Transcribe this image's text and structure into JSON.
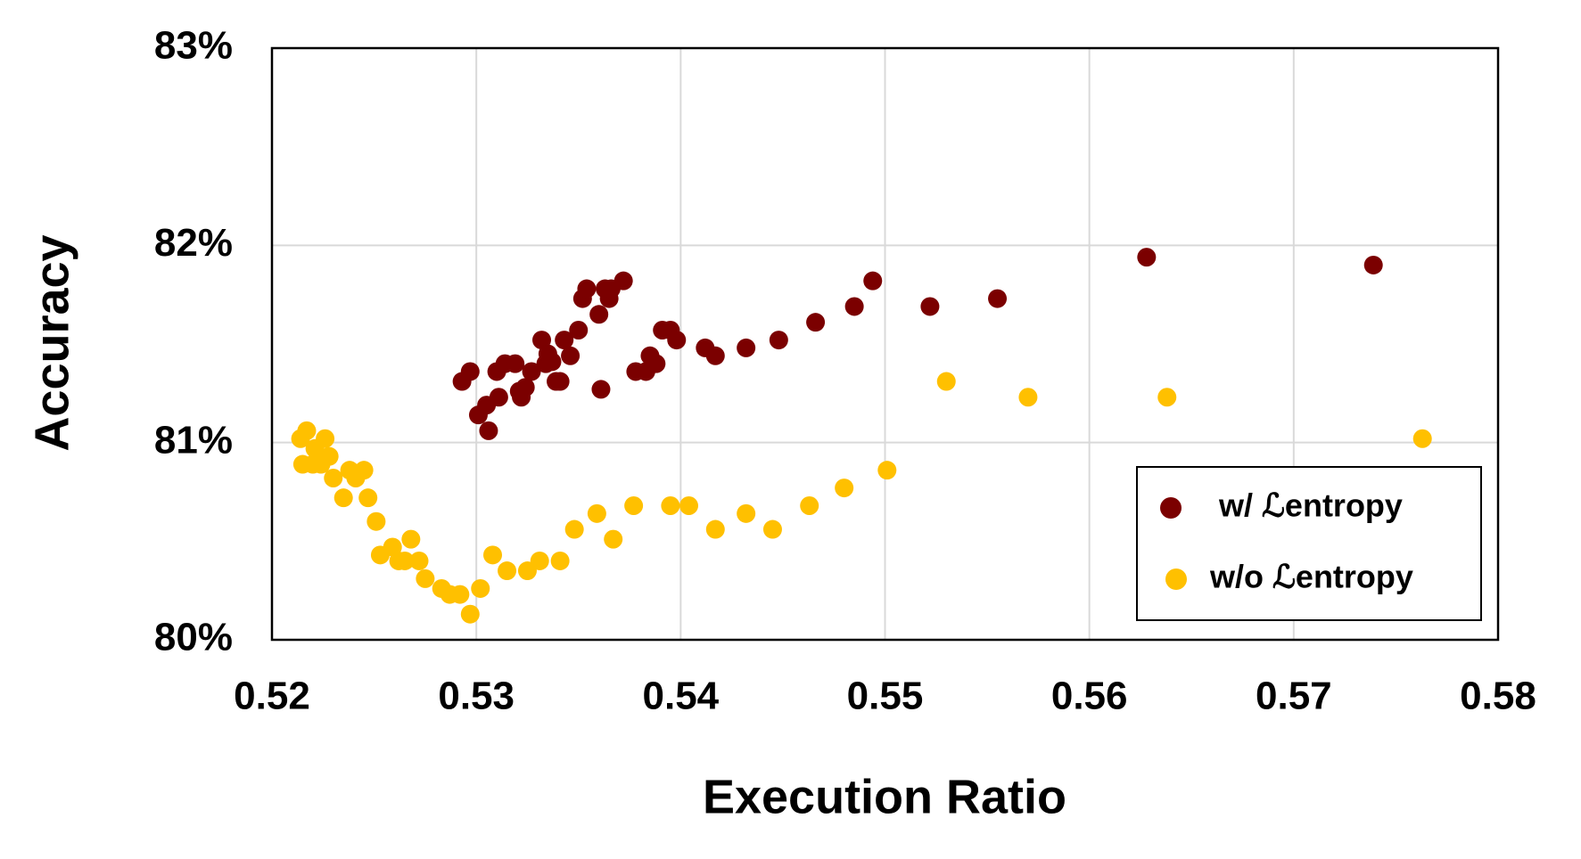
{
  "chart_data": {
    "type": "scatter",
    "x_label": "Execution Ratio",
    "y_label": "Accuracy",
    "xlim": [
      0.52,
      0.58
    ],
    "xticks": [
      0.52,
      0.53,
      0.54,
      0.55,
      0.56,
      0.57,
      0.58
    ],
    "ylim": [
      80,
      83
    ],
    "yticks": [
      {
        "value": 80,
        "label": "80%"
      },
      {
        "value": 81,
        "label": "81%"
      },
      {
        "value": 82,
        "label": "82%"
      },
      {
        "value": 83,
        "label": "83%"
      }
    ],
    "grid": true,
    "legend": "lower right",
    "series": [
      {
        "name": "w/ ℒentropy",
        "color": "#7b0000",
        "x": [
          0.5293,
          0.5297,
          0.5301,
          0.5305,
          0.5306,
          0.531,
          0.5311,
          0.5314,
          0.5319,
          0.5321,
          0.5322,
          0.5324,
          0.5327,
          0.5332,
          0.5334,
          0.5335,
          0.5337,
          0.5339,
          0.5341,
          0.5343,
          0.5346,
          0.535,
          0.5352,
          0.5354,
          0.536,
          0.5361,
          0.5363,
          0.5365,
          0.5366,
          0.5372,
          0.5378,
          0.5383,
          0.5385,
          0.5388,
          0.5391,
          0.5395,
          0.5398,
          0.5412,
          0.5417,
          0.5432,
          0.5448,
          0.5466,
          0.5485,
          0.5494,
          0.5522,
          0.5555,
          0.5628,
          0.5739
        ],
        "values": [
          81.31,
          81.36,
          81.14,
          81.19,
          81.06,
          81.36,
          81.23,
          81.4,
          81.4,
          81.26,
          81.23,
          81.28,
          81.36,
          81.52,
          81.4,
          81.45,
          81.41,
          81.31,
          81.31,
          81.52,
          81.44,
          81.57,
          81.73,
          81.78,
          81.65,
          81.27,
          81.78,
          81.73,
          81.78,
          81.82,
          81.36,
          81.36,
          81.44,
          81.4,
          81.57,
          81.57,
          81.52,
          81.48,
          81.44,
          81.48,
          81.52,
          81.61,
          81.69,
          81.82,
          81.69,
          81.73,
          81.94,
          81.9
        ]
      },
      {
        "name": "w/o ℒentropy",
        "color": "#ffc000",
        "x": [
          0.5214,
          0.5217,
          0.5215,
          0.522,
          0.5221,
          0.5224,
          0.5226,
          0.5228,
          0.523,
          0.5235,
          0.5238,
          0.5241,
          0.5245,
          0.5247,
          0.5251,
          0.5253,
          0.5259,
          0.5262,
          0.5265,
          0.5268,
          0.5272,
          0.5275,
          0.5283,
          0.5287,
          0.5292,
          0.5297,
          0.5302,
          0.5308,
          0.5315,
          0.5325,
          0.5331,
          0.5341,
          0.5348,
          0.5359,
          0.5367,
          0.5377,
          0.5395,
          0.5404,
          0.5417,
          0.5432,
          0.5445,
          0.5463,
          0.548,
          0.5501,
          0.553,
          0.557,
          0.5638,
          0.5763
        ],
        "values": [
          81.02,
          81.06,
          80.89,
          80.89,
          80.97,
          80.89,
          81.02,
          80.93,
          80.82,
          80.72,
          80.86,
          80.82,
          80.86,
          80.72,
          80.6,
          80.43,
          80.47,
          80.4,
          80.4,
          80.51,
          80.4,
          80.31,
          80.26,
          80.23,
          80.23,
          80.13,
          80.26,
          80.43,
          80.35,
          80.35,
          80.4,
          80.4,
          80.56,
          80.64,
          80.51,
          80.68,
          80.68,
          80.68,
          80.56,
          80.64,
          80.56,
          80.68,
          80.77,
          80.86,
          81.31,
          81.23,
          81.23,
          81.02
        ]
      }
    ]
  }
}
